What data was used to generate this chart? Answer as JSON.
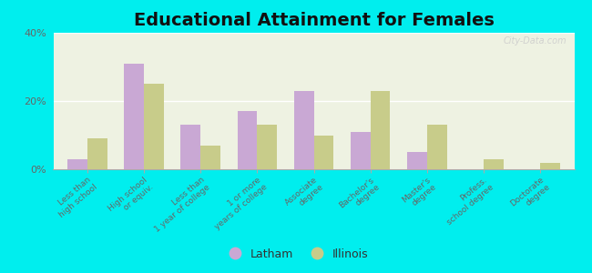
{
  "title": "Educational Attainment for Females",
  "categories": [
    "Less than\nhigh school",
    "High school\nor equiv.",
    "Less than\n1 year of college",
    "1 or more\nyears of college",
    "Associate\ndegree",
    "Bachelor's\ndegree",
    "Master's\ndegree",
    "Profess.\nschool degree",
    "Doctorate\ndegree"
  ],
  "latham": [
    3,
    31,
    13,
    17,
    23,
    11,
    5,
    0,
    0
  ],
  "illinois": [
    9,
    25,
    7,
    13,
    10,
    23,
    13,
    3,
    2
  ],
  "latham_color": "#c9a8d4",
  "illinois_color": "#c8cc8a",
  "bg_color": "#00eeee",
  "plot_bg": "#eef2e2",
  "ylim": [
    0,
    40
  ],
  "yticks": [
    0,
    20,
    40
  ],
  "ytick_labels": [
    "0%",
    "20%",
    "40%"
  ],
  "bar_width": 0.35,
  "legend_labels": [
    "Latham",
    "Illinois"
  ],
  "title_fontsize": 14,
  "tick_fontsize": 6.5,
  "legend_fontsize": 9,
  "watermark": "City-Data.com"
}
